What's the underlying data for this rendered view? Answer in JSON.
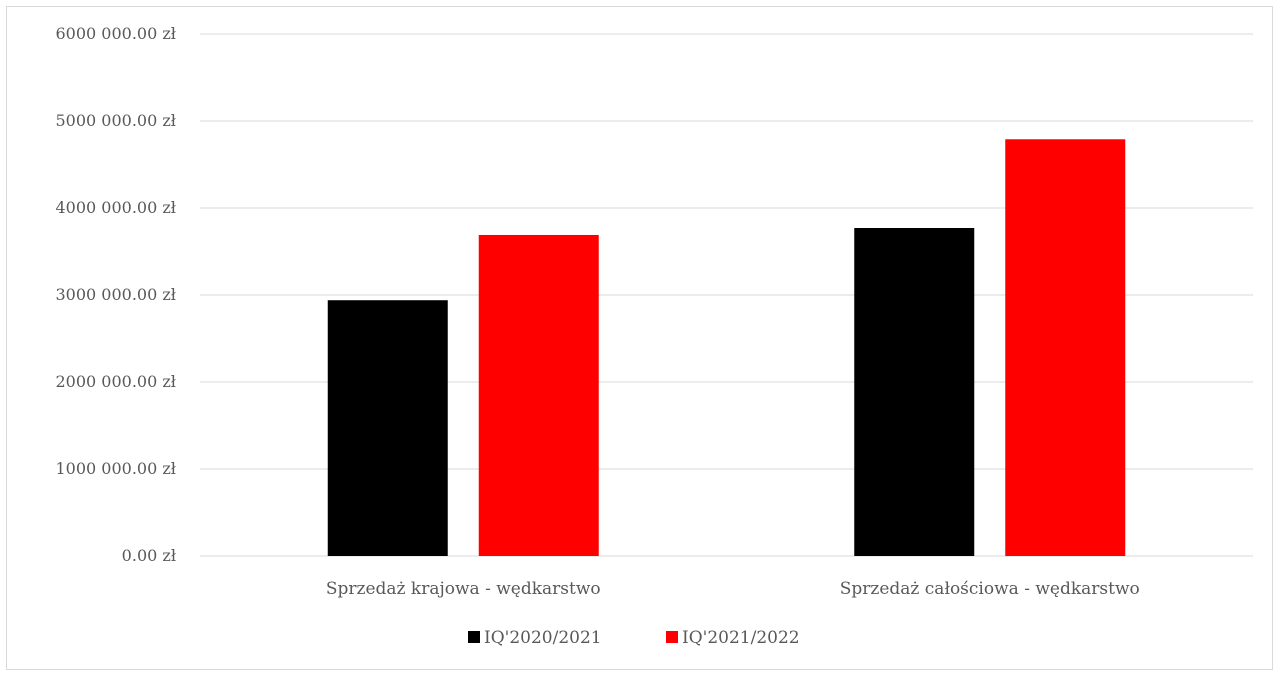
{
  "chart_data": {
    "type": "bar",
    "title": "",
    "xlabel": "",
    "ylabel": "",
    "categories": [
      "Sprzedaż krajowa - wędkarstwo",
      "Sprzedaż całościowa - wędkarstwo"
    ],
    "series": [
      {
        "name": "IQ'2020/2021",
        "color": "#000000",
        "values": [
          2940000,
          3770000
        ]
      },
      {
        "name": "IQ'2021/2022",
        "color": "#ff0000",
        "values": [
          3690000,
          4790000
        ]
      }
    ],
    "ylim": [
      0,
      6000000
    ],
    "yticks": [
      0,
      1000000,
      2000000,
      3000000,
      4000000,
      5000000,
      6000000
    ],
    "ytick_labels": [
      "0.00 zł",
      "1000 000.00 zł",
      "2000 000.00 zł",
      "3000 000.00 zł",
      "4000 000.00 zł",
      "5000 000.00 zł",
      "6000 000.00 zł"
    ],
    "grid": true,
    "legend_position": "bottom"
  }
}
